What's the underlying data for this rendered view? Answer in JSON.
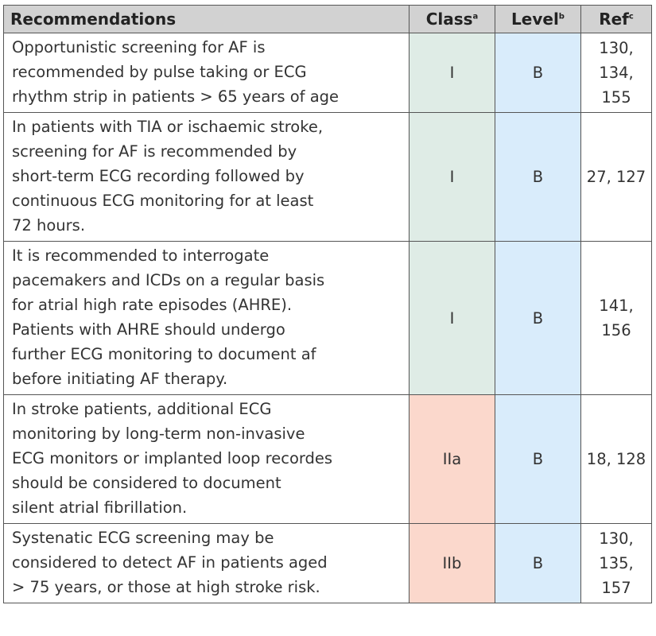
{
  "headers": {
    "recommendations": "Recommendations",
    "class": "Class",
    "class_sup": "a",
    "level": "Level",
    "level_sup": "b",
    "ref": "Ref",
    "ref_sup": "c"
  },
  "class_colors": {
    "I": "#dfece6",
    "IIa": "#fbd8cc",
    "IIb": "#fbd8cc",
    "level": "#d9ecfb",
    "header": "#d2d2d2"
  },
  "rows": [
    {
      "lines": [
        "Opportunistic screening for AF is",
        "recommended by pulse taking or ECG",
        "rhythm strip in patients > 65 years of age"
      ],
      "class": "I",
      "level": "B",
      "ref_lines": [
        "130, 134,",
        "155"
      ]
    },
    {
      "lines": [
        "In patients with TIA or ischaemic stroke,",
        "screening for AF is recommended by",
        "short-term ECG recording followed by",
        "continuous ECG monitoring for at least",
        "72 hours."
      ],
      "class": "I",
      "level": "B",
      "ref_lines": [
        "27, 127"
      ]
    },
    {
      "lines": [
        "It is recommended to interrogate",
        "pacemakers and ICDs on a regular basis",
        "for atrial high rate episodes (AHRE).",
        "Patients with AHRE should undergo",
        "further ECG monitoring to document af",
        "before initiating AF therapy."
      ],
      "class": "I",
      "level": "B",
      "ref_lines": [
        "141, 156"
      ]
    },
    {
      "lines": [
        "In stroke patients, additional ECG",
        "monitoring by long-term non-invasive",
        "ECG monitors or implanted loop recordes",
        "should be considered  to document",
        "silent atrial fibrillation."
      ],
      "class": "IIa",
      "level": "B",
      "ref_lines": [
        "18, 128"
      ]
    },
    {
      "lines": [
        "Systenatic ECG screening may be",
        "considered to detect AF in patients aged",
        "> 75 years, or those at high stroke risk."
      ],
      "class": "IIb",
      "level": "B",
      "ref_lines": [
        "130, 135,",
        "157"
      ]
    }
  ]
}
